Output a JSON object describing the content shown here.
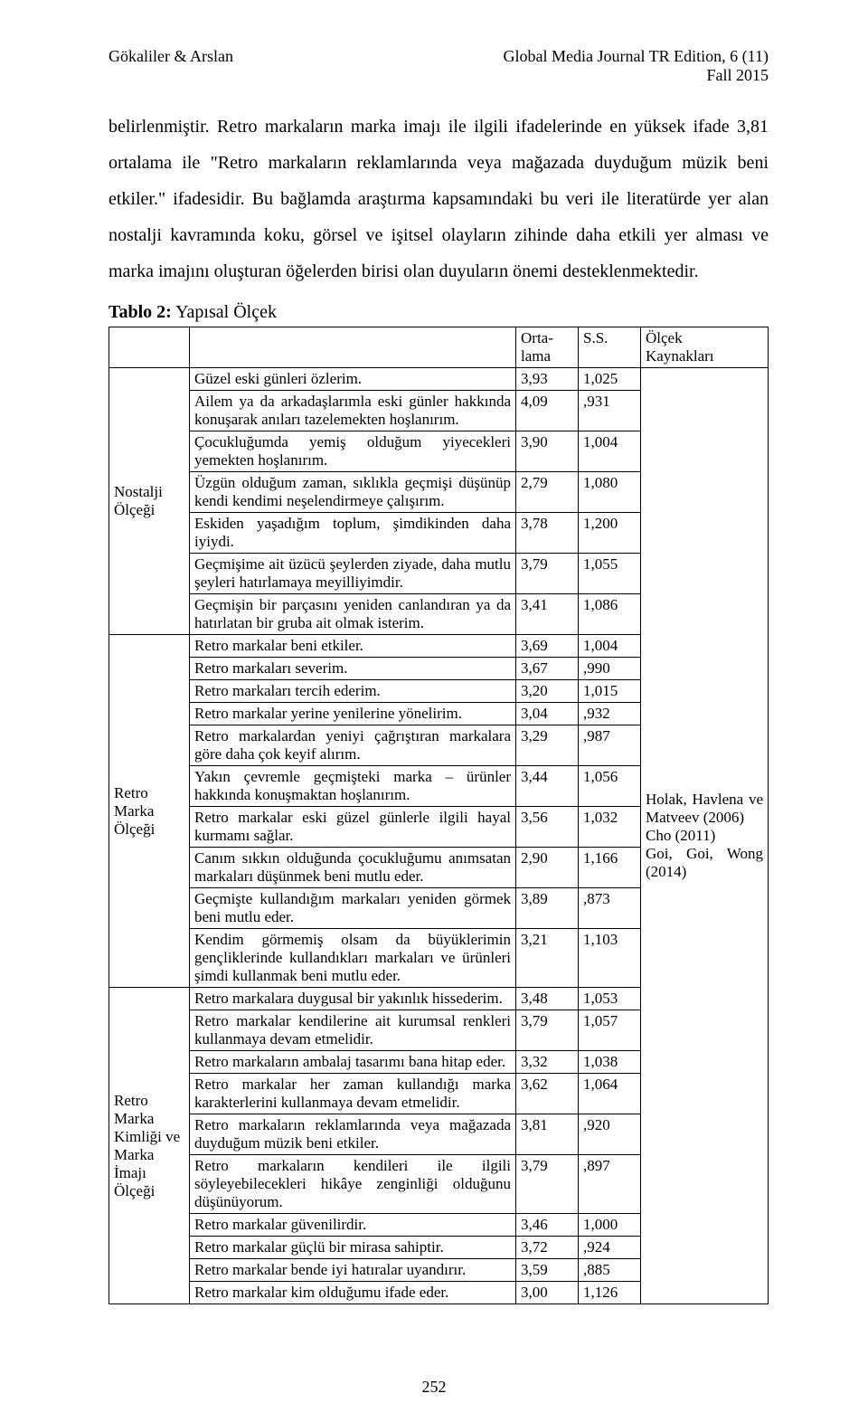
{
  "header": {
    "left": "Gökaliler & Arslan",
    "right_line1": "Global Media Journal TR Edition, 6 (11)",
    "right_line2": "Fall 2015"
  },
  "paragraph": "belirlenmiştir. Retro markaların marka imajı ile ilgili ifadelerinde en yüksek ifade 3,81 ortalama ile \"Retro markaların reklamlarında veya mağazada duyduğum müzik beni etkiler.\" ifadesidir. Bu bağlamda araştırma kapsamındaki bu veri ile literatürde yer alan nostalji kavramında koku, görsel ve işitsel olayların zihinde daha etkili yer alması ve marka imajını oluşturan öğelerden birisi olan duyuların önemi desteklenmektedir.",
  "table": {
    "title_bold": "Tablo 2:",
    "title_rest": " Yapısal Ölçek",
    "col_mean_l1": "Orta-",
    "col_mean_l2": "lama",
    "col_sd": "S.S.",
    "col_src_l1": "Ölçek",
    "col_src_l2": "Kaynakları",
    "cat1": "Nostalji Ölçeği",
    "cat2": "Retro Marka Ölçeği",
    "cat3": "Retro Marka Kimliği ve Marka İmajı Ölçeği",
    "sources": "Holak, Havlena ve Matveev (2006)\nCho  (2011)\nGoi, Goi, Wong (2014)",
    "rows": [
      {
        "t": "Güzel eski günleri özlerim.",
        "m": "3,93",
        "s": "1,025"
      },
      {
        "t": "Ailem ya da arkadaşlarımla eski günler hakkında konuşarak anıları tazelemekten hoşlanırım.",
        "m": "4,09",
        "s": ",931"
      },
      {
        "t": "Çocukluğumda yemiş olduğum yiyecekleri yemekten hoşlanırım.",
        "m": "3,90",
        "s": "1,004"
      },
      {
        "t": "Üzgün olduğum zaman, sıklıkla geçmişi düşünüp kendi kendimi neşelendirmeye çalışırım.",
        "m": "2,79",
        "s": "1,080"
      },
      {
        "t": "Eskiden yaşadığım toplum, şimdikinden daha iyiydi.",
        "m": "3,78",
        "s": "1,200"
      },
      {
        "t": "Geçmişime ait üzücü şeylerden ziyade, daha mutlu şeyleri hatırlamaya meyilliyimdir.",
        "m": "3,79",
        "s": "1,055"
      },
      {
        "t": "Geçmişin bir parçasını yeniden canlandıran ya da hatırlatan bir gruba ait olmak isterim.",
        "m": "3,41",
        "s": "1,086"
      },
      {
        "t": "Retro markalar beni etkiler.",
        "m": "3,69",
        "s": "1,004"
      },
      {
        "t": "Retro markaları severim.",
        "m": "3,67",
        "s": ",990"
      },
      {
        "t": "Retro markaları tercih ederim.",
        "m": "3,20",
        "s": "1,015"
      },
      {
        "t": "Retro markalar yerine yenilerine yönelirim.",
        "m": "3,04",
        "s": ",932"
      },
      {
        "t": "Retro markalardan yeniyi çağrıştıran markalara göre daha çok keyif alırım.",
        "m": "3,29",
        "s": ",987"
      },
      {
        "t": "Yakın çevremle geçmişteki marka – ürünler hakkında konuşmaktan hoşlanırım.",
        "m": "3,44",
        "s": "1,056"
      },
      {
        "t": "Retro markalar eski güzel günlerle ilgili hayal kurmamı sağlar.",
        "m": "3,56",
        "s": "1,032"
      },
      {
        "t": "Canım sıkkın olduğunda çocukluğumu anımsatan markaları düşünmek beni mutlu eder.",
        "m": "2,90",
        "s": "1,166"
      },
      {
        "t": "Geçmişte kullandığım markaları yeniden görmek beni mutlu eder.",
        "m": "3,89",
        "s": ",873"
      },
      {
        "t": "Kendim görmemiş olsam da büyüklerimin gençliklerinde kullandıkları markaları ve ürünleri şimdi kullanmak beni mutlu eder.",
        "m": "3,21",
        "s": "1,103"
      },
      {
        "t": "Retro markalara duygusal bir yakınlık hissederim.",
        "m": "3,48",
        "s": "1,053"
      },
      {
        "t": "Retro markalar kendilerine ait kurumsal renkleri kullanmaya devam etmelidir.",
        "m": "3,79",
        "s": "1,057"
      },
      {
        "t": "Retro markaların ambalaj tasarımı bana hitap eder.",
        "m": "3,32",
        "s": "1,038"
      },
      {
        "t": "Retro markalar her zaman kullandığı marka karakterlerini kullanmaya devam etmelidir.",
        "m": "3,62",
        "s": "1,064"
      },
      {
        "t": "Retro markaların reklamlarında veya mağazada duyduğum müzik beni etkiler.",
        "m": "3,81",
        "s": ",920"
      },
      {
        "t": "Retro markaların kendileri ile ilgili söyleyebilecekleri hikâye zenginliği olduğunu düşünüyorum.",
        "m": "3,79",
        "s": ",897"
      },
      {
        "t": "Retro markalar güvenilirdir.",
        "m": "3,46",
        "s": "1,000"
      },
      {
        "t": "Retro markalar güçlü bir mirasa sahiptir.",
        "m": "3,72",
        "s": ",924"
      },
      {
        "t": "Retro markalar bende iyi hatıralar uyandırır.",
        "m": "3,59",
        "s": ",885"
      },
      {
        "t": "Retro markalar kim olduğumu ifade eder.",
        "m": "3,00",
        "s": "1,126"
      }
    ]
  },
  "page_number": "252"
}
